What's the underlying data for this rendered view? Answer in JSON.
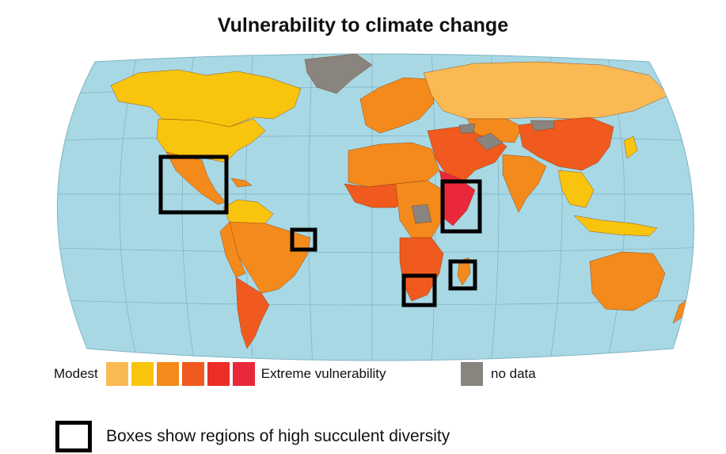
{
  "title": "Vulnerability to climate change",
  "legend": {
    "min_label": "Modest",
    "max_label": "Extreme vulnerability",
    "scale_colors": [
      "#fbb954",
      "#f9c40d",
      "#f48a1b",
      "#f05a1e",
      "#ec2d28",
      "#e9283c"
    ],
    "nodata_label": "no data",
    "nodata_color": "#8a847e"
  },
  "box_note": "Boxes show regions of high succulent diversity",
  "colors": {
    "ocean": "#a8d8e4",
    "box_stroke": "#000000"
  },
  "highlight_regions": [
    "Mexico and Central America",
    "Eastern Brazil",
    "Horn of Africa",
    "Madagascar",
    "Southern Africa"
  ]
}
